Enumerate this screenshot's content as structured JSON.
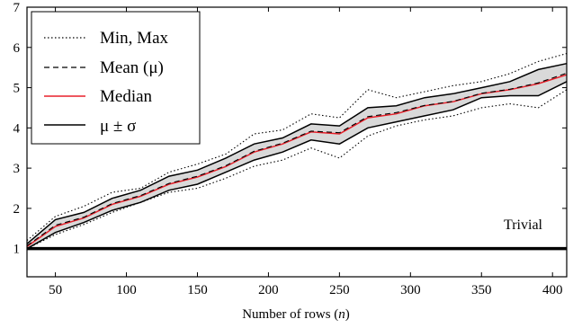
{
  "chart_data": {
    "type": "line",
    "xlabel": "Number of rows (n)",
    "xlabel_prefix": "Number of rows (",
    "xlabel_var": "n",
    "xlabel_suffix": ")",
    "ylabel": "",
    "xlim": [
      30,
      410
    ],
    "ylim": [
      0.3,
      7.0
    ],
    "xticks": [
      50,
      100,
      150,
      200,
      250,
      300,
      350,
      400
    ],
    "yticks": [
      1,
      2,
      3,
      4,
      5,
      6,
      7
    ],
    "grid": false,
    "legend_position": "top-left",
    "x": [
      30,
      50,
      70,
      90,
      110,
      130,
      150,
      170,
      190,
      210,
      230,
      250,
      270,
      290,
      310,
      330,
      350,
      370,
      390,
      410
    ],
    "series": [
      {
        "name": "Min, Max",
        "style": "dotted",
        "color": "#000000",
        "values_min": [
          1.0,
          1.35,
          1.6,
          1.9,
          2.15,
          2.4,
          2.5,
          2.75,
          3.05,
          3.2,
          3.5,
          3.25,
          3.8,
          4.05,
          4.2,
          4.3,
          4.5,
          4.6,
          4.5,
          4.95
        ],
        "values_max": [
          1.2,
          1.8,
          2.05,
          2.4,
          2.5,
          2.9,
          3.1,
          3.35,
          3.85,
          3.95,
          4.35,
          4.25,
          4.95,
          4.75,
          4.9,
          5.05,
          5.15,
          5.35,
          5.65,
          5.85
        ]
      },
      {
        "name": "Mean (μ)",
        "style": "dashed",
        "color": "#000000",
        "values": [
          1.07,
          1.58,
          1.78,
          2.12,
          2.32,
          2.62,
          2.8,
          3.06,
          3.42,
          3.62,
          3.92,
          3.88,
          4.28,
          4.38,
          4.56,
          4.66,
          4.86,
          4.96,
          5.12,
          5.36
        ]
      },
      {
        "name": "Median",
        "style": "solid",
        "color": "#e8202a",
        "values": [
          1.05,
          1.55,
          1.76,
          2.1,
          2.3,
          2.6,
          2.78,
          3.04,
          3.4,
          3.6,
          3.9,
          3.85,
          4.25,
          4.35,
          4.55,
          4.65,
          4.85,
          4.95,
          5.1,
          5.32
        ]
      },
      {
        "name": "μ ± σ",
        "style": "solid",
        "color": "#000000",
        "values_lower": [
          1.0,
          1.4,
          1.65,
          1.95,
          2.15,
          2.45,
          2.6,
          2.9,
          3.2,
          3.4,
          3.7,
          3.6,
          4.0,
          4.15,
          4.3,
          4.45,
          4.75,
          4.8,
          4.8,
          5.15
        ],
        "values_upper": [
          1.12,
          1.72,
          1.9,
          2.25,
          2.45,
          2.8,
          2.95,
          3.25,
          3.6,
          3.75,
          4.1,
          4.05,
          4.5,
          4.55,
          4.75,
          4.85,
          5.0,
          5.15,
          5.45,
          5.6
        ]
      },
      {
        "name": "Trivial",
        "style": "solid-thick",
        "color": "#000000",
        "value": 1
      }
    ],
    "fill_color": "#d9d9d9",
    "annotation": "Trivial",
    "legend": {
      "min_max": "Min, Max",
      "mean": "Mean (μ)",
      "median": "Median",
      "pm_sigma": "μ ± σ"
    }
  }
}
